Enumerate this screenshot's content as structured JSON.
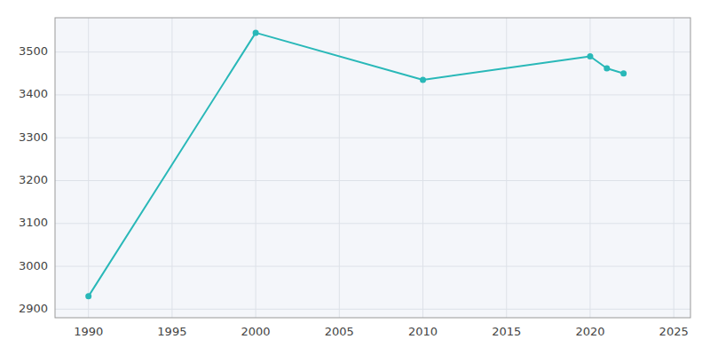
{
  "chart_data": {
    "type": "line",
    "x": [
      1990,
      2000,
      2010,
      2020,
      2021,
      2022
    ],
    "values": [
      2930,
      3545,
      3435,
      3490,
      3462,
      3450
    ],
    "color": "#29B8B8",
    "marker": "circle",
    "xlim": [
      1988,
      2026
    ],
    "ylim": [
      2880,
      3580
    ],
    "xticks": [
      1990,
      1995,
      2000,
      2005,
      2010,
      2015,
      2020,
      2025
    ],
    "yticks": [
      2900,
      3000,
      3100,
      3200,
      3300,
      3400,
      3500
    ],
    "grid": true
  }
}
